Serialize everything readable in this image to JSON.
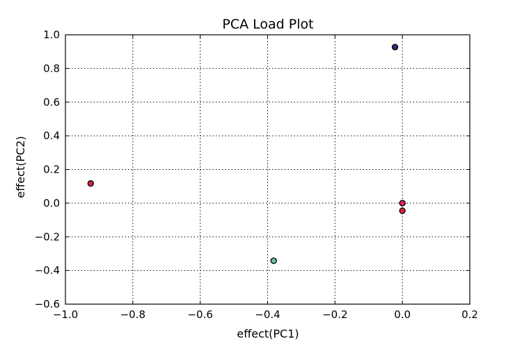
{
  "chart_data": {
    "type": "scatter",
    "title": "PCA Load Plot",
    "xlabel": "effect(PC1)",
    "ylabel": "effect(PC2)",
    "xlim": [
      -1.0,
      0.2
    ],
    "ylim": [
      -0.6,
      1.0
    ],
    "x_ticks": [
      -1.0,
      -0.8,
      -0.6,
      -0.4,
      -0.2,
      0.0,
      0.2
    ],
    "y_ticks": [
      -0.6,
      -0.4,
      -0.2,
      0.0,
      0.2,
      0.4,
      0.6,
      0.8,
      1.0
    ],
    "x_tick_labels": [
      "−1.0",
      "−0.8",
      "−0.6",
      "−0.4",
      "−0.2",
      "0.0",
      "0.2"
    ],
    "y_tick_labels": [
      "−0.6",
      "−0.4",
      "−0.2",
      "0.0",
      "0.2",
      "0.4",
      "0.6",
      "0.8",
      "1.0"
    ],
    "grid": true,
    "points": [
      {
        "x": -0.925,
        "y": 0.117,
        "color": "#d7263d"
      },
      {
        "x": -0.382,
        "y": -0.342,
        "color": "#66c2a5"
      },
      {
        "x": -0.022,
        "y": 0.927,
        "color": "#3b2a73"
      },
      {
        "x": 0.0,
        "y": 0.0,
        "color": "#5e3c99"
      },
      {
        "x": 0.0,
        "y": 0.0,
        "color": "#e0245e"
      },
      {
        "x": 0.0,
        "y": -0.045,
        "color": "#d7263d"
      }
    ]
  }
}
